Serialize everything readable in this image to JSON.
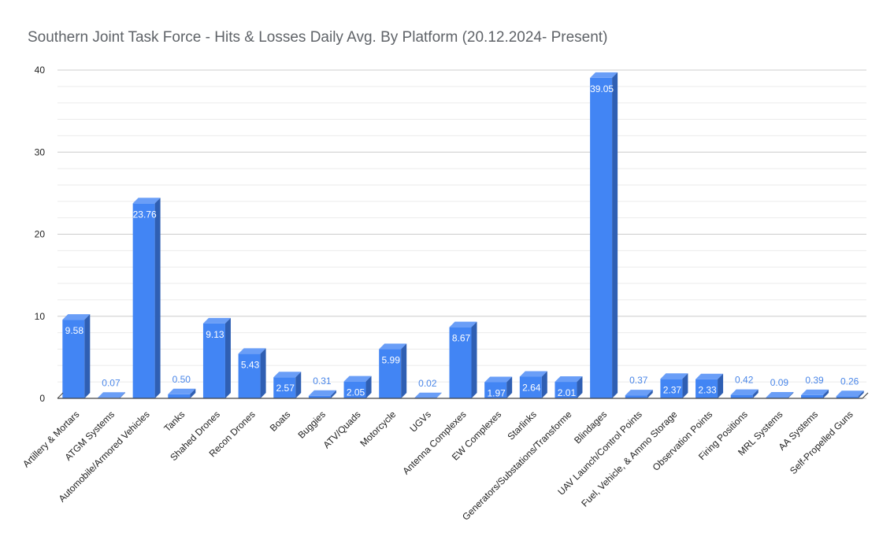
{
  "chart_data": {
    "type": "bar",
    "title": "Southern Joint Task Force - Hits & Losses Daily Avg. By Platform (20.12.2024- Present)",
    "xlabel": "",
    "ylabel": "",
    "ylim": [
      0,
      40
    ],
    "yticks": [
      "0",
      "10",
      "20",
      "30",
      "40"
    ],
    "grid": true,
    "legend": "none",
    "style": "3d-column",
    "colors": {
      "bar_front": "#4285f4",
      "bar_top": "#6a9ef7",
      "bar_side": "#2f5fb3",
      "label_outside": "#4a86e8",
      "label_inside": "#ffffff"
    },
    "categories": [
      "Artillery & Mortars",
      "ATGM Systems",
      "Automobile/Armored Vehicles",
      "Tanks",
      "Shahed Drones",
      "Recon Drones",
      "Boats",
      "Buggies",
      "ATV/Quads",
      "Motorcycle",
      "UGVs",
      "Antenna Complexes",
      "EW Complexes",
      "Starlinks",
      "Generators/Substations/Transforme",
      "Blindages",
      "UAV Launch/Control Points",
      "Fuel, Vehicle, & Ammo Storage",
      "Observation Points",
      "Firing Positions",
      "MRL Systems",
      "AA Systems",
      "Self-Propelled Guns"
    ],
    "values": [
      9.58,
      0.07,
      23.76,
      0.5,
      9.13,
      5.43,
      2.57,
      0.31,
      2.05,
      5.99,
      0.02,
      8.67,
      1.97,
      2.64,
      2.01,
      39.05,
      0.37,
      2.37,
      2.33,
      0.42,
      0.09,
      0.39,
      0.26
    ],
    "data_labels": [
      "9.58",
      "0.07",
      "23.76",
      "0.50",
      "9.13",
      "5.43",
      "2.57",
      "0.31",
      "2.05",
      "5.99",
      "0.02",
      "8.67",
      "1.97",
      "2.64",
      "2.01",
      "39.05",
      "0.37",
      "2.37",
      "2.33",
      "0.42",
      "0.09",
      "0.39",
      "0.26"
    ]
  }
}
